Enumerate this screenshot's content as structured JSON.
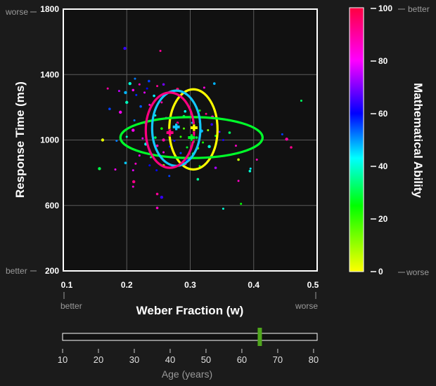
{
  "chart_data": {
    "type": "scatter",
    "xlabel": "Weber Fraction (w)",
    "ylabel": "Response Time (ms)",
    "xlim": [
      0.1,
      0.5
    ],
    "ylim": [
      200,
      1800
    ],
    "x_ticks": [
      "0.1",
      "0.2",
      "0.3",
      "0.4",
      "0.5"
    ],
    "y_ticks": [
      "200",
      "600",
      "1000",
      "1400",
      "1800"
    ],
    "x_hints": {
      "low": "better",
      "high": "worse"
    },
    "y_hints": {
      "low": "better",
      "high": "worse"
    },
    "grid": true,
    "colorbar": {
      "label": "Mathematical Ability",
      "range": [
        0,
        100
      ],
      "ticks": [
        "0",
        "20",
        "40",
        "60",
        "80",
        "100"
      ],
      "hint_high": "better",
      "hint_low": "worse",
      "colormap": "gist_rainbow: yellow(0) - green - cyan - blue - magenta - red(100)"
    },
    "ellipses": [
      {
        "ability": 0,
        "color": "#ffff00",
        "cx": 0.305,
        "cy": 1065,
        "rx": 0.038,
        "ry": 245
      },
      {
        "ability": 25,
        "color": "#00ff2a",
        "cx": 0.302,
        "cy": 1015,
        "rx": 0.112,
        "ry": 125
      },
      {
        "ability": 45,
        "color": "#13c8ff",
        "cx": 0.278,
        "cy": 1072,
        "rx": 0.038,
        "ry": 230
      },
      {
        "ability": 88,
        "color": "#ff0080",
        "cx": 0.268,
        "cy": 1060,
        "rx": 0.038,
        "ry": 230
      }
    ],
    "means": [
      {
        "ability": 0,
        "color": "#ffff00",
        "x": 0.306,
        "y": 1075
      },
      {
        "ability": 25,
        "color": "#00ff2a",
        "x": 0.302,
        "y": 1015
      },
      {
        "ability": 45,
        "color": "#13c8ff",
        "x": 0.278,
        "y": 1080
      },
      {
        "ability": 88,
        "color": "#ff0080",
        "x": 0.268,
        "y": 1045
      }
    ],
    "points": [
      {
        "x": 0.197,
        "y": 1560,
        "a": 70
      },
      {
        "x": 0.253,
        "y": 1545,
        "a": 96
      },
      {
        "x": 0.213,
        "y": 1375,
        "a": 55
      },
      {
        "x": 0.235,
        "y": 1360,
        "a": 60
      },
      {
        "x": 0.22,
        "y": 1340,
        "a": 92
      },
      {
        "x": 0.205,
        "y": 1345,
        "a": 40
      },
      {
        "x": 0.258,
        "y": 1340,
        "a": 75
      },
      {
        "x": 0.248,
        "y": 1330,
        "a": 96
      },
      {
        "x": 0.232,
        "y": 1315,
        "a": 65
      },
      {
        "x": 0.21,
        "y": 1305,
        "a": 88
      },
      {
        "x": 0.28,
        "y": 1310,
        "a": 100
      },
      {
        "x": 0.322,
        "y": 1320,
        "a": 90
      },
      {
        "x": 0.338,
        "y": 1345,
        "a": 50
      },
      {
        "x": 0.17,
        "y": 1315,
        "a": 95
      },
      {
        "x": 0.188,
        "y": 1300,
        "a": 82
      },
      {
        "x": 0.198,
        "y": 1290,
        "a": 50
      },
      {
        "x": 0.215,
        "y": 1275,
        "a": 62
      },
      {
        "x": 0.228,
        "y": 1290,
        "a": 85
      },
      {
        "x": 0.243,
        "y": 1270,
        "a": 45
      },
      {
        "x": 0.268,
        "y": 1290,
        "a": 97
      },
      {
        "x": 0.2,
        "y": 1230,
        "a": 38
      },
      {
        "x": 0.222,
        "y": 1205,
        "a": 58
      },
      {
        "x": 0.236,
        "y": 1215,
        "a": 90
      },
      {
        "x": 0.255,
        "y": 1230,
        "a": 95
      },
      {
        "x": 0.173,
        "y": 1190,
        "a": 60
      },
      {
        "x": 0.19,
        "y": 1170,
        "a": 88
      },
      {
        "x": 0.475,
        "y": 1240,
        "a": 30
      },
      {
        "x": 0.292,
        "y": 1175,
        "a": 42
      },
      {
        "x": 0.315,
        "y": 1180,
        "a": 20
      },
      {
        "x": 0.325,
        "y": 1160,
        "a": 98
      },
      {
        "x": 0.335,
        "y": 1140,
        "a": 92
      },
      {
        "x": 0.245,
        "y": 1150,
        "a": 40
      },
      {
        "x": 0.262,
        "y": 1135,
        "a": 85
      },
      {
        "x": 0.29,
        "y": 1145,
        "a": 30
      },
      {
        "x": 0.212,
        "y": 1120,
        "a": 55
      },
      {
        "x": 0.23,
        "y": 1105,
        "a": 92
      },
      {
        "x": 0.28,
        "y": 1105,
        "a": 97
      },
      {
        "x": 0.303,
        "y": 1105,
        "a": 48
      },
      {
        "x": 0.315,
        "y": 1110,
        "a": 55
      },
      {
        "x": 0.334,
        "y": 1095,
        "a": 70
      },
      {
        "x": 0.21,
        "y": 1060,
        "a": 88
      },
      {
        "x": 0.24,
        "y": 1060,
        "a": 90
      },
      {
        "x": 0.255,
        "y": 1070,
        "a": 20
      },
      {
        "x": 0.265,
        "y": 1050,
        "a": 78
      },
      {
        "x": 0.29,
        "y": 1070,
        "a": 15
      },
      {
        "x": 0.318,
        "y": 1055,
        "a": 50
      },
      {
        "x": 0.328,
        "y": 1060,
        "a": 10
      },
      {
        "x": 0.346,
        "y": 1050,
        "a": 72
      },
      {
        "x": 0.362,
        "y": 1045,
        "a": 30
      },
      {
        "x": 0.445,
        "y": 1035,
        "a": 60
      },
      {
        "x": 0.452,
        "y": 1005,
        "a": 95
      },
      {
        "x": 0.459,
        "y": 955,
        "a": 97
      },
      {
        "x": 0.2,
        "y": 1020,
        "a": 38
      },
      {
        "x": 0.225,
        "y": 1010,
        "a": 85
      },
      {
        "x": 0.245,
        "y": 1015,
        "a": 28
      },
      {
        "x": 0.258,
        "y": 1000,
        "a": 95
      },
      {
        "x": 0.285,
        "y": 1020,
        "a": 18
      },
      {
        "x": 0.31,
        "y": 1015,
        "a": 28
      },
      {
        "x": 0.34,
        "y": 1025,
        "a": 25
      },
      {
        "x": 0.352,
        "y": 1000,
        "a": 68
      },
      {
        "x": 0.162,
        "y": 1000,
        "a": 2
      },
      {
        "x": 0.184,
        "y": 995,
        "a": 55
      },
      {
        "x": 0.275,
        "y": 995,
        "a": 65
      },
      {
        "x": 0.305,
        "y": 990,
        "a": 30
      },
      {
        "x": 0.32,
        "y": 985,
        "a": 20
      },
      {
        "x": 0.23,
        "y": 975,
        "a": 42
      },
      {
        "x": 0.248,
        "y": 965,
        "a": 94
      },
      {
        "x": 0.268,
        "y": 960,
        "a": 65
      },
      {
        "x": 0.295,
        "y": 955,
        "a": 25
      },
      {
        "x": 0.312,
        "y": 950,
        "a": 15
      },
      {
        "x": 0.33,
        "y": 960,
        "a": 40
      },
      {
        "x": 0.372,
        "y": 965,
        "a": 92
      },
      {
        "x": 0.236,
        "y": 935,
        "a": 58
      },
      {
        "x": 0.258,
        "y": 925,
        "a": 90
      },
      {
        "x": 0.285,
        "y": 920,
        "a": 60
      },
      {
        "x": 0.305,
        "y": 915,
        "a": 28
      },
      {
        "x": 0.22,
        "y": 905,
        "a": 86
      },
      {
        "x": 0.238,
        "y": 895,
        "a": 30
      },
      {
        "x": 0.376,
        "y": 880,
        "a": 5
      },
      {
        "x": 0.405,
        "y": 880,
        "a": 93
      },
      {
        "x": 0.295,
        "y": 875,
        "a": 65
      },
      {
        "x": 0.198,
        "y": 860,
        "a": 48
      },
      {
        "x": 0.214,
        "y": 855,
        "a": 92
      },
      {
        "x": 0.236,
        "y": 845,
        "a": 65
      },
      {
        "x": 0.258,
        "y": 845,
        "a": 10
      },
      {
        "x": 0.292,
        "y": 855,
        "a": 95
      },
      {
        "x": 0.315,
        "y": 840,
        "a": 22
      },
      {
        "x": 0.34,
        "y": 830,
        "a": 80
      },
      {
        "x": 0.395,
        "y": 825,
        "a": 45
      },
      {
        "x": 0.182,
        "y": 820,
        "a": 88
      },
      {
        "x": 0.157,
        "y": 825,
        "a": 28
      },
      {
        "x": 0.21,
        "y": 815,
        "a": 85
      },
      {
        "x": 0.247,
        "y": 815,
        "a": 65
      },
      {
        "x": 0.394,
        "y": 810,
        "a": 40
      },
      {
        "x": 0.267,
        "y": 780,
        "a": 60
      },
      {
        "x": 0.211,
        "y": 745,
        "a": 98
      },
      {
        "x": 0.312,
        "y": 760,
        "a": 35
      },
      {
        "x": 0.376,
        "y": 750,
        "a": 92
      },
      {
        "x": 0.21,
        "y": 715,
        "a": 90
      },
      {
        "x": 0.248,
        "y": 670,
        "a": 96
      },
      {
        "x": 0.255,
        "y": 650,
        "a": 70
      },
      {
        "x": 0.38,
        "y": 610,
        "a": 22
      },
      {
        "x": 0.248,
        "y": 585,
        "a": 92
      },
      {
        "x": 0.352,
        "y": 580,
        "a": 40
      }
    ]
  },
  "age_slider": {
    "label": "Age (years)",
    "ticks": [
      "10",
      "20",
      "30",
      "40",
      "50",
      "60",
      "70",
      "80"
    ],
    "range": [
      10,
      81
    ],
    "value": 65,
    "thumb_color": "#4fa61c"
  }
}
